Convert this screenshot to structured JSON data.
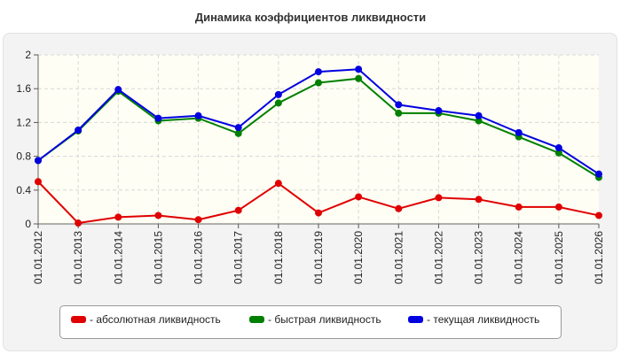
{
  "chart_data": {
    "type": "line",
    "title": "Динамика коэффициентов ликвидности",
    "categories": [
      "01.01.2012",
      "01.01.2013",
      "01.01.2014",
      "01.01.2015",
      "01.01.2016",
      "01.01.2017",
      "01.01.2018",
      "01.01.2019",
      "01.01.2020",
      "01.01.2021",
      "01.01.2022",
      "01.01.2023",
      "01.01.2024",
      "01.01.2025",
      "01.01.2026"
    ],
    "ylim": [
      0,
      2
    ],
    "yticks": [
      "0",
      "0.4",
      "0.8",
      "1.2",
      "1.6",
      "2"
    ],
    "grid": true,
    "legend_position": "bottom",
    "series": [
      {
        "name": "- абсолютная ликвидность",
        "color": "#e00000",
        "values": [
          0.5,
          0.01,
          0.08,
          0.1,
          0.05,
          0.16,
          0.48,
          0.13,
          0.32,
          0.18,
          0.31,
          0.29,
          0.2,
          0.2,
          0.1
        ]
      },
      {
        "name": "- быстрая ликвидность",
        "color": "#008000",
        "values": [
          0.75,
          1.1,
          1.57,
          1.22,
          1.25,
          1.07,
          1.43,
          1.67,
          1.72,
          1.31,
          1.31,
          1.22,
          1.03,
          0.84,
          0.55
        ]
      },
      {
        "name": "- текущая ликвидность",
        "color": "#0000e0",
        "values": [
          0.75,
          1.11,
          1.59,
          1.25,
          1.28,
          1.14,
          1.53,
          1.8,
          1.83,
          1.41,
          1.34,
          1.28,
          1.08,
          0.9,
          0.59
        ]
      }
    ]
  }
}
